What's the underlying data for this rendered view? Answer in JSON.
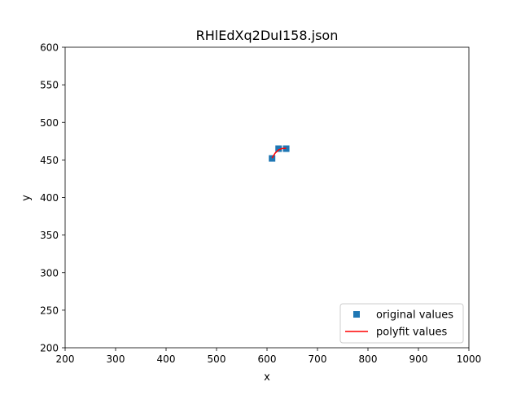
{
  "chart_data": {
    "type": "scatter",
    "title": "RHlEdXq2DuI158.json",
    "xlabel": "x",
    "ylabel": "y",
    "xlim": [
      200,
      1000
    ],
    "ylim": [
      200,
      600
    ],
    "xticks": [
      200,
      300,
      400,
      500,
      600,
      700,
      800,
      900,
      1000
    ],
    "yticks": [
      200,
      250,
      300,
      350,
      400,
      450,
      500,
      550,
      600
    ],
    "grid": false,
    "legend_position": "lower-right",
    "series": [
      {
        "name": "original values",
        "kind": "markers",
        "marker": "square",
        "color": "#1f77b4",
        "points": [
          [
            610,
            452
          ],
          [
            623,
            465
          ],
          [
            638,
            465
          ]
        ]
      },
      {
        "name": "polyfit values",
        "kind": "line",
        "color": "#ff0000",
        "points": [
          [
            610,
            452.5
          ],
          [
            616,
            459
          ],
          [
            623,
            463.5
          ],
          [
            630,
            465.2
          ],
          [
            638,
            465.5
          ]
        ]
      }
    ]
  }
}
